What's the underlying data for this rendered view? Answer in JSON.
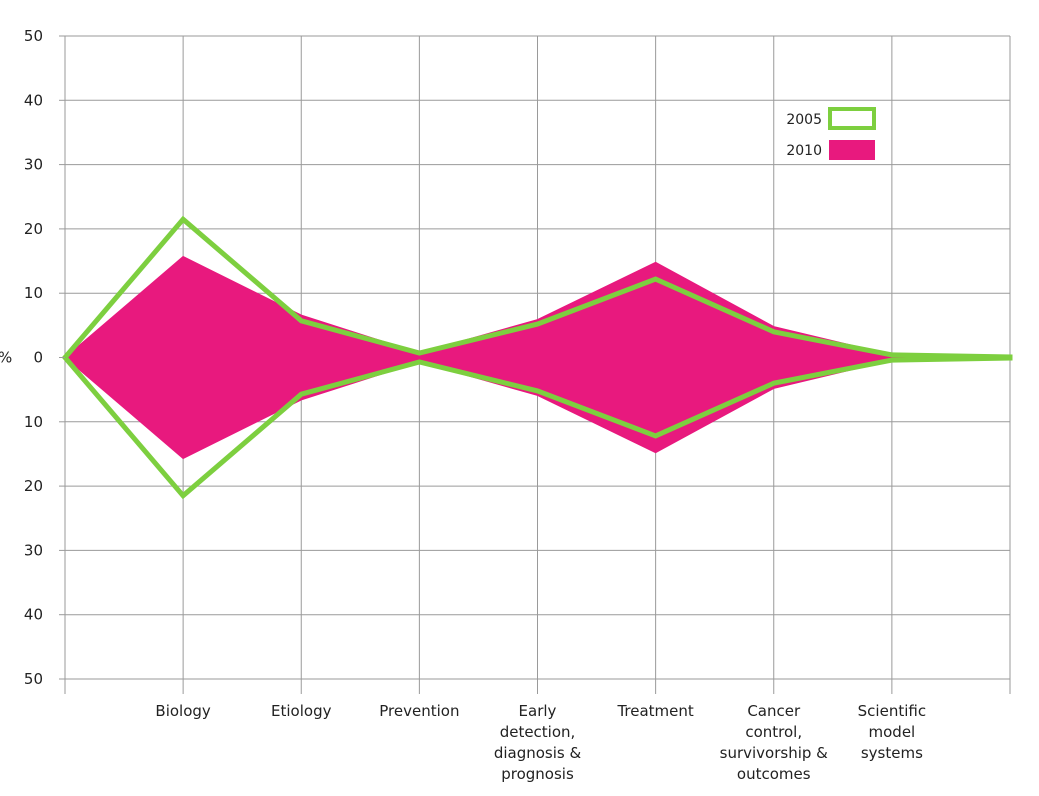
{
  "chart_data": {
    "type": "area",
    "title": "",
    "xlabel": "",
    "ylabel": "%",
    "ylim": [
      -50,
      50
    ],
    "y_ticks": [
      50,
      40,
      30,
      20,
      10,
      0,
      10,
      20,
      30,
      40,
      50
    ],
    "grid": true,
    "legend_position": "top-right",
    "categories": [
      "",
      "Biology",
      "Etiology",
      "Prevention",
      "Early detection, diagnosis & prognosis",
      "Treatment",
      "Cancer control, survivorship & outcomes",
      "Scientific model systems",
      ""
    ],
    "category_lines": [
      [],
      [
        "Biology"
      ],
      [
        "Etiology"
      ],
      [
        "Prevention"
      ],
      [
        "Early",
        "detection,",
        "diagnosis &",
        "prognosis"
      ],
      [
        "Treatment"
      ],
      [
        "Cancer",
        "control,",
        "survivorship &",
        "outcomes"
      ],
      [
        "Scientific",
        "model",
        "systems"
      ],
      []
    ],
    "series": [
      {
        "name": "2005",
        "style": "outline",
        "color": "#7dcf3f",
        "values": [
          0,
          21.5,
          5.7,
          0.7,
          5.2,
          12.2,
          4,
          0.4,
          0.1
        ]
      },
      {
        "name": "2010",
        "style": "filled",
        "color": "#e8197e",
        "values": [
          0,
          15.7,
          6.6,
          0.7,
          5.9,
          14.8,
          4.8,
          0.4,
          0.1
        ]
      }
    ]
  }
}
